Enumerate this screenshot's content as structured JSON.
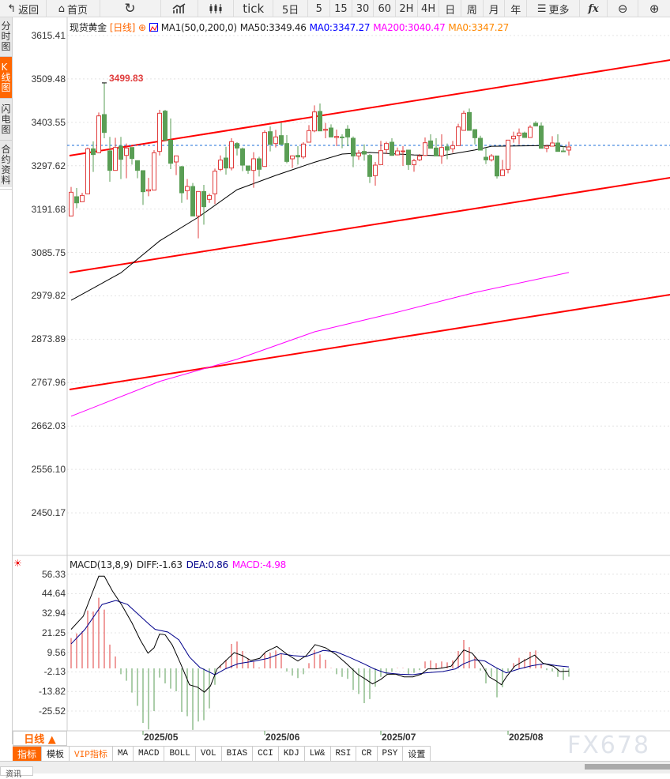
{
  "toolbar": {
    "back": "返回",
    "home": "首页",
    "tick": "tick",
    "fiveday": "5日",
    "periods": [
      "5",
      "15",
      "30",
      "60",
      "2H",
      "4H",
      "日",
      "周",
      "月",
      "年"
    ],
    "more": "更多",
    "fx": "fx"
  },
  "sidebar": {
    "items": [
      {
        "label": "分时图",
        "active": false
      },
      {
        "label": "K线图",
        "active": true
      },
      {
        "label": "闪电图",
        "active": false
      },
      {
        "label": "合约资料",
        "active": false
      }
    ]
  },
  "legend": {
    "symbol": "现货黄金",
    "period": "[日线]",
    "ma_params": "MA1(50,0,200,0)",
    "ma50": "MA50:3349.46",
    "ma0a": "MA0:3347.27",
    "ma200": "MA200:3040.47",
    "ma0b": "MA0:3347.27"
  },
  "macd_legend": {
    "params": "MACD(13,8,9)",
    "diff": "DIFF:-1.63",
    "dea": "DEA:0.86",
    "macd": "MACD:-4.98"
  },
  "y_labels": [
    "3615.41",
    "3509.48",
    "3403.55",
    "3297.62",
    "3191.68",
    "3085.75",
    "2979.82",
    "2873.89",
    "2767.96",
    "2662.03",
    "2556.10",
    "2450.17"
  ],
  "macd_y_labels": [
    "56.33",
    "44.64",
    "32.94",
    "21.25",
    "9.56",
    "-2.13",
    "-13.82",
    "-25.52"
  ],
  "date_labels": [
    "2025/05",
    "2025/06",
    "2025/07",
    "2025/08"
  ],
  "period_selector": "日线 ▲",
  "bottom_tabs": [
    "指标",
    "模板",
    "VIP指标",
    "MA",
    "MACD",
    "BOLL",
    "VOL",
    "BIAS",
    "CCI",
    "KDJ",
    "LW&",
    "RSI",
    "CR",
    "PSY",
    "设置"
  ],
  "watermark": "FX678",
  "news_tab": "资讯",
  "colors": {
    "up": "#e03c3c",
    "down": "#5a9e55",
    "ma50": "#000000",
    "ma200": "#ff00ff",
    "trendline": "#ff0000",
    "diff": "#000000",
    "dea": "#00008b",
    "accent": "#ff6600"
  },
  "chart_data": [
    {
      "type": "candlestick",
      "title": "现货黄金 [日线]",
      "ylim": [
        2450.17,
        3615.41
      ],
      "high_label": "3499.83",
      "last_price": 3347.27,
      "month_start_index": {
        "2025/05": 13,
        "2025/06": 35,
        "2025/07": 56,
        "2025/08": 79
      },
      "ohlc": [
        [
          3174.9,
          3245.7,
          3174.9,
          3232.8
        ],
        [
          3221.9,
          3243,
          3194,
          3207
        ],
        [
          3209.7,
          3231.5,
          3209,
          3225
        ],
        [
          3229,
          3342,
          3229,
          3338.9
        ],
        [
          3338.9,
          3356.9,
          3282.3,
          3324.8
        ],
        [
          3329.3,
          3427.6,
          3328,
          3419.3
        ],
        [
          3422.5,
          3499.83,
          3364.7,
          3378.8
        ],
        [
          3333.8,
          3367.9,
          3258.5,
          3286.2
        ],
        [
          3286.2,
          3365.9,
          3286.2,
          3342.1
        ],
        [
          3345.3,
          3367.9,
          3265,
          3313.2
        ],
        [
          3322.8,
          3351.8,
          3266.9,
          3340.8
        ],
        [
          3342.1,
          3342.1,
          3300.3,
          3315.1
        ],
        [
          3310,
          3310,
          3266.9,
          3286.2
        ],
        [
          3285.6,
          3285.6,
          3202,
          3234.1
        ],
        [
          3236,
          3268,
          3223,
          3239
        ],
        [
          3238,
          3335.7,
          3238,
          3329.3
        ],
        [
          3332.5,
          3434,
          3322.8,
          3425.7
        ],
        [
          3430.9,
          3434,
          3360,
          3360
        ],
        [
          3360,
          3412.9,
          3289.4,
          3303.6
        ],
        [
          3306.8,
          3321.6,
          3274.6,
          3321.6
        ],
        [
          3295.2,
          3297.1,
          3207,
          3231.5
        ],
        [
          3236.7,
          3265,
          3214.8,
          3246.9
        ],
        [
          3246.9,
          3255.3,
          3174.9,
          3174.9
        ],
        [
          3174.9,
          3234.7,
          3120.3,
          3234.7
        ],
        [
          3234.7,
          3250.8,
          3153.7,
          3197.5
        ],
        [
          3215.5,
          3229.6,
          3207,
          3225
        ],
        [
          3229,
          3290.7,
          3203.9,
          3284.3
        ],
        [
          3288.8,
          3322.8,
          3284.3,
          3311.3
        ],
        [
          3316.4,
          3344,
          3275.9,
          3292
        ],
        [
          3292,
          3364.7,
          3286.2,
          3356.3
        ],
        [
          3351.8,
          3355,
          3322.8,
          3340.8
        ],
        [
          3338.9,
          3342,
          3284.3,
          3299
        ],
        [
          3297.1,
          3297.1,
          3277.8,
          3286.2
        ],
        [
          3286.2,
          3330.6,
          3243.8,
          3314.5
        ],
        [
          3314.5,
          3319.6,
          3271.4,
          3288.8
        ],
        [
          3295.8,
          3383.9,
          3295,
          3378.8
        ],
        [
          3380.7,
          3393.6,
          3332.5,
          3349.8
        ],
        [
          3351.8,
          3385.2,
          3342.1,
          3367.9
        ],
        [
          3371.1,
          3403.2,
          3349,
          3349.8
        ],
        [
          3351.8,
          3372.4,
          3303.6,
          3308
        ],
        [
          3314.5,
          3322.8,
          3292,
          3321.6
        ],
        [
          3322.8,
          3345.3,
          3300.3,
          3319
        ],
        [
          3319,
          3355,
          3314.5,
          3350.5
        ],
        [
          3355,
          3396.8,
          3355,
          3383.3
        ],
        [
          3382.6,
          3445,
          3379.4,
          3428.9
        ],
        [
          3430.2,
          3449.5,
          3382.6,
          3382.6
        ],
        [
          3384.2,
          3401.9,
          3364.6,
          3386.5
        ],
        [
          3389.7,
          3398.7,
          3367.8,
          3367.8
        ],
        [
          3366.5,
          3385.8,
          3345.3,
          3369.1
        ],
        [
          3367.8,
          3374.2,
          3340.2,
          3366.5
        ],
        [
          3387.1,
          3396.8,
          3345.3,
          3367.8
        ],
        [
          3364.6,
          3369.1,
          3293.9,
          3321.5
        ],
        [
          3321.5,
          3335.7,
          3311.9,
          3328
        ],
        [
          3332.5,
          3349.8,
          3310,
          3326
        ],
        [
          3322.8,
          3326,
          3255.3,
          3271.4
        ],
        [
          3273.3,
          3306.7,
          3248.9,
          3299
        ],
        [
          3300.3,
          3358.2,
          3300,
          3334.4
        ],
        [
          3336.9,
          3356.3,
          3326,
          3351.8
        ],
        [
          3355,
          3364.6,
          3322,
          3322.8
        ],
        [
          3324.1,
          3342,
          3323,
          3333.7
        ],
        [
          3332.5,
          3345.3,
          3297.1,
          3333.7
        ],
        [
          3335.7,
          3335.7,
          3287.5,
          3300.3
        ],
        [
          3300.3,
          3314.5,
          3283,
          3310
        ],
        [
          3311.9,
          3326,
          3308.7,
          3320.9
        ],
        [
          3322.8,
          3366.5,
          3321.5,
          3353.7
        ],
        [
          3358.2,
          3374.2,
          3340,
          3340.2
        ],
        [
          3340.8,
          3364.6,
          3321.5,
          3321.5
        ],
        [
          3321.5,
          3374.2,
          3302.2,
          3342.1
        ],
        [
          3344,
          3351.8,
          3313.2,
          3335.7
        ],
        [
          3338.9,
          3358.2,
          3329.2,
          3346.6
        ],
        [
          3346.6,
          3400,
          3346,
          3392.2
        ],
        [
          3383.9,
          3432.1,
          3383,
          3425.7
        ],
        [
          3427.6,
          3437.3,
          3383,
          3383.9
        ],
        [
          3385.8,
          3385.8,
          3349.8,
          3365.9
        ],
        [
          3364.6,
          3371,
          3335,
          3335.7
        ],
        [
          3318.3,
          3342,
          3301.6,
          3311.9
        ],
        [
          3311.9,
          3326,
          3308,
          3321.5
        ],
        [
          3321.5,
          3321.5,
          3266.2,
          3272.6
        ],
        [
          3273.3,
          3311.9,
          3273,
          3287.5
        ],
        [
          3288.7,
          3360.1,
          3279.1,
          3360.1
        ],
        [
          3363.3,
          3380.7,
          3353.7,
          3369.7
        ],
        [
          3371,
          3388.4,
          3349.8,
          3377.5
        ],
        [
          3377.5,
          3380.7,
          3366,
          3366.5
        ],
        [
          3366.5,
          3396.8,
          3366,
          3391.6
        ],
        [
          3401.3,
          3406.4,
          3394,
          3394.8
        ],
        [
          3394.8,
          3403.2,
          3340,
          3340.2
        ],
        [
          3340.2,
          3348.5,
          3330.6,
          3345.3
        ],
        [
          3345.3,
          3369.7,
          3345,
          3353.1
        ],
        [
          3353.1,
          3374.2,
          3332,
          3332.5
        ],
        [
          3333.7,
          3345.3,
          3332,
          3332.5
        ],
        [
          3335.7,
          3356.3,
          3322.8,
          3343.4
        ]
      ],
      "ma50": [
        [
          0,
          2969
        ],
        [
          9,
          3036
        ],
        [
          16,
          3114
        ],
        [
          23,
          3172
        ],
        [
          30,
          3239
        ],
        [
          37,
          3274
        ],
        [
          44,
          3306
        ],
        [
          49,
          3326
        ],
        [
          54,
          3330
        ],
        [
          62,
          3324
        ],
        [
          67,
          3322
        ],
        [
          73,
          3336
        ],
        [
          76,
          3345
        ],
        [
          87,
          3347
        ],
        [
          90,
          3343
        ]
      ],
      "ma200": [
        [
          0,
          2686
        ],
        [
          16,
          2771
        ],
        [
          30,
          2825
        ],
        [
          44,
          2892
        ],
        [
          59,
          2940
        ],
        [
          73,
          2988
        ],
        [
          90,
          3037
        ]
      ],
      "trendlines": [
        [
          [
            -0.3,
            3322.2
          ],
          [
            108.3,
            3555.6
          ]
        ],
        [
          [
            -0.3,
            3036.7
          ],
          [
            108.3,
            3268.2
          ]
        ],
        [
          [
            -0.3,
            2751.2
          ],
          [
            108.3,
            2982.7
          ]
        ]
      ]
    },
    {
      "type": "macd",
      "title": "MACD(13,8,9)",
      "ylim": [
        -38,
        58
      ],
      "histogram": [
        18.1,
        20.9,
        22.2,
        34.6,
        34.0,
        42.2,
        35.1,
        14.2,
        7.1,
        -3.5,
        -7.4,
        -14.5,
        -22.4,
        -32.6,
        -36.5,
        -25.5,
        -5.5,
        -9.0,
        -12.1,
        -13.7,
        -26.0,
        -28.6,
        -36.8,
        -31.8,
        -31.0,
        -23.9,
        -9.8,
        1.6,
        5.2,
        14.6,
        16.1,
        10.4,
        6.0,
        3.9,
        0.5,
        9.4,
        9.4,
        10.7,
        8.7,
        -1.9,
        -4.3,
        -5.8,
        -3.5,
        3.1,
        11.0,
        8.3,
        5.2,
        0.2,
        -3.5,
        -5.1,
        -6.3,
        -12.9,
        -15.3,
        -20.8,
        -18.4,
        -11.0,
        -5.1,
        -3.5,
        -1.9,
        0.2,
        0.2,
        -3.5,
        -2.7,
        -1.1,
        4.1,
        4.7,
        3.1,
        4.1,
        3.6,
        4.7,
        10.4,
        17.0,
        12.7,
        7.2,
        -1.3,
        -9.0,
        -5.1,
        -17.3,
        -11.3,
        -1.9,
        3.1,
        6.3,
        5.7,
        9.9,
        10.7,
        2.8,
        -1.1,
        -1.9,
        -5.1,
        -7.0,
        -4.98
      ],
      "diff": [
        [
          0,
          23.3
        ],
        [
          2.2,
          31.2
        ],
        [
          3.3,
          40.6
        ],
        [
          5,
          55.1
        ],
        [
          6,
          55.1
        ],
        [
          7.5,
          46.1
        ],
        [
          9.1,
          38.2
        ],
        [
          11,
          27.2
        ],
        [
          12.5,
          17
        ],
        [
          13.9,
          9.1
        ],
        [
          15,
          12.3
        ],
        [
          16,
          20.5
        ],
        [
          17,
          20.1
        ],
        [
          18.3,
          13.9
        ],
        [
          19.8,
          2.8
        ],
        [
          21.4,
          -9.8
        ],
        [
          22.9,
          -11.3
        ],
        [
          24.1,
          -14.2
        ],
        [
          25.2,
          -10.5
        ],
        [
          26.4,
          -0.3
        ],
        [
          27.9,
          4.4
        ],
        [
          29.5,
          9.4
        ],
        [
          31,
          7.6
        ],
        [
          32.5,
          4.7
        ],
        [
          34.1,
          6
        ],
        [
          35.2,
          9.9
        ],
        [
          37.2,
          13.1
        ],
        [
          39.1,
          8.3
        ],
        [
          41,
          4.4
        ],
        [
          42.5,
          7.6
        ],
        [
          44.1,
          14.2
        ],
        [
          46,
          12.3
        ],
        [
          47.9,
          8.3
        ],
        [
          49.8,
          2.8
        ],
        [
          51.8,
          -3.5
        ],
        [
          53.3,
          -6.6
        ],
        [
          54.5,
          -9.3
        ],
        [
          56,
          -6.6
        ],
        [
          57.2,
          -3.5
        ],
        [
          58.7,
          -3.5
        ],
        [
          60.2,
          -5.1
        ],
        [
          61.8,
          -5.1
        ],
        [
          63.3,
          -3.5
        ],
        [
          64.5,
          -0.3
        ],
        [
          66,
          -0.3
        ],
        [
          67.2,
          0.3
        ],
        [
          68.7,
          1.3
        ],
        [
          69.8,
          6
        ],
        [
          71,
          11
        ],
        [
          72.5,
          9.1
        ],
        [
          74.1,
          2.8
        ],
        [
          75.6,
          -5.1
        ],
        [
          76.8,
          -7.4
        ],
        [
          77.8,
          -9.8
        ],
        [
          78.7,
          -5.1
        ],
        [
          80.2,
          1.3
        ],
        [
          81.8,
          4.4
        ],
        [
          83.8,
          7.9
        ],
        [
          85.3,
          3.1
        ],
        [
          87.2,
          1.3
        ],
        [
          88.4,
          -1.9
        ],
        [
          90,
          -1.63
        ]
      ],
      "dea": [
        [
          0,
          14.6
        ],
        [
          2.5,
          23.3
        ],
        [
          5.6,
          38.2
        ],
        [
          8.1,
          40.6
        ],
        [
          10.2,
          38.2
        ],
        [
          12.5,
          31.2
        ],
        [
          14.1,
          26.4
        ],
        [
          15.2,
          23.3
        ],
        [
          17.5,
          21.7
        ],
        [
          19.5,
          17
        ],
        [
          21.4,
          6.8
        ],
        [
          23.3,
          0.5
        ],
        [
          26,
          -3.8
        ],
        [
          27.9,
          -0.3
        ],
        [
          30.2,
          2.8
        ],
        [
          33.3,
          4.4
        ],
        [
          35.6,
          6
        ],
        [
          37.9,
          8.8
        ],
        [
          40.2,
          7.6
        ],
        [
          42.5,
          7.1
        ],
        [
          45.6,
          10.7
        ],
        [
          47.9,
          9.9
        ],
        [
          50.2,
          6.8
        ],
        [
          52.9,
          2.8
        ],
        [
          54.8,
          -0.3
        ],
        [
          56.8,
          -2.7
        ],
        [
          59.5,
          -3.5
        ],
        [
          61.8,
          -3.8
        ],
        [
          64.1,
          -2.7
        ],
        [
          67.2,
          -1.9
        ],
        [
          69.5,
          -0.3
        ],
        [
          71,
          2.8
        ],
        [
          72.9,
          5.2
        ],
        [
          74.8,
          4.4
        ],
        [
          76.8,
          0.5
        ],
        [
          78.7,
          -2.7
        ],
        [
          81,
          -0.3
        ],
        [
          83.3,
          1.6
        ],
        [
          85.6,
          2.8
        ],
        [
          87.9,
          1.6
        ],
        [
          90,
          0.86
        ]
      ]
    }
  ]
}
